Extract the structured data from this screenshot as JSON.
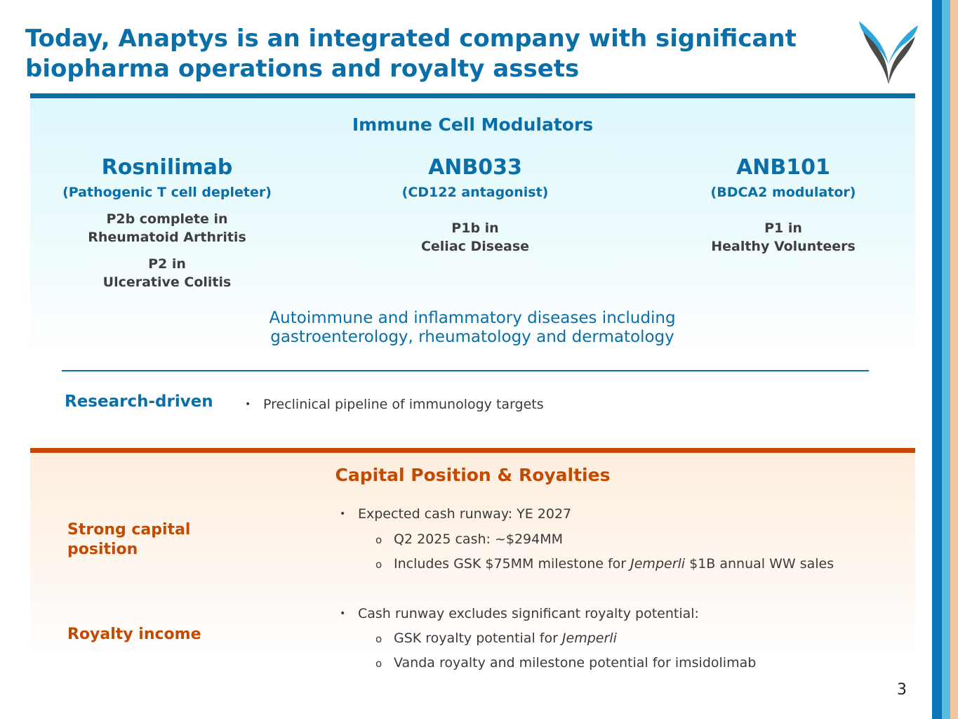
{
  "slide": {
    "title_line1": "Today, Anaptys is an integrated company with significant",
    "title_line2": "biopharma operations and royalty assets",
    "page_number": "3"
  },
  "colors": {
    "primary_blue": "#0a6fa8",
    "accent_orange": "#c34a00",
    "light_blue": "#5bbbe3",
    "peach": "#f6c49b"
  },
  "icons": {
    "logo": "anaptys-logo-icon"
  },
  "immune": {
    "heading": "Immune Cell Modulators",
    "programs": [
      {
        "name": "Rosnilimab",
        "mechanism": "(Pathogenic T cell depleter)",
        "stages": [
          {
            "line1": "P2b complete in",
            "line2": "Rheumatoid Arthritis"
          },
          {
            "line1": "P2 in",
            "line2": "Ulcerative Colitis"
          }
        ]
      },
      {
        "name": "ANB033",
        "mechanism": "(CD122 antagonist)",
        "stages": [
          {
            "line1": "P1b in",
            "line2": "Celiac Disease"
          }
        ]
      },
      {
        "name": "ANB101",
        "mechanism": "(BDCA2 modulator)",
        "stages": [
          {
            "line1": "P1 in",
            "line2": "Healthy Volunteers"
          }
        ]
      }
    ],
    "tagline_line1": "Autoimmune and inflammatory diseases including",
    "tagline_line2": "gastroenterology, rheumatology and dermatology"
  },
  "research": {
    "label": "Research-driven",
    "bullet_marker": "•",
    "bullet": "Preclinical pipeline of immunology targets"
  },
  "capital": {
    "heading": "Capital Position & Royalties",
    "sub_marker": "o",
    "strong_label_line1": "Strong capital",
    "strong_label_line2": "position",
    "cash_bullet": "Expected cash runway: YE 2027",
    "cash_sub1": "Q2 2025 cash: ~$294MM",
    "cash_sub2_pre": "Includes GSK $75MM milestone for ",
    "cash_sub2_italic": "Jemperli",
    "cash_sub2_post": " $1B annual WW sales",
    "royalty_label": "Royalty income",
    "royalty_bullet": "Cash runway excludes significant royalty potential:",
    "royalty_sub1_pre": "GSK royalty potential for ",
    "royalty_sub1_italic": "Jemperli",
    "royalty_sub2": "Vanda royalty and milestone potential for imsidolimab"
  }
}
